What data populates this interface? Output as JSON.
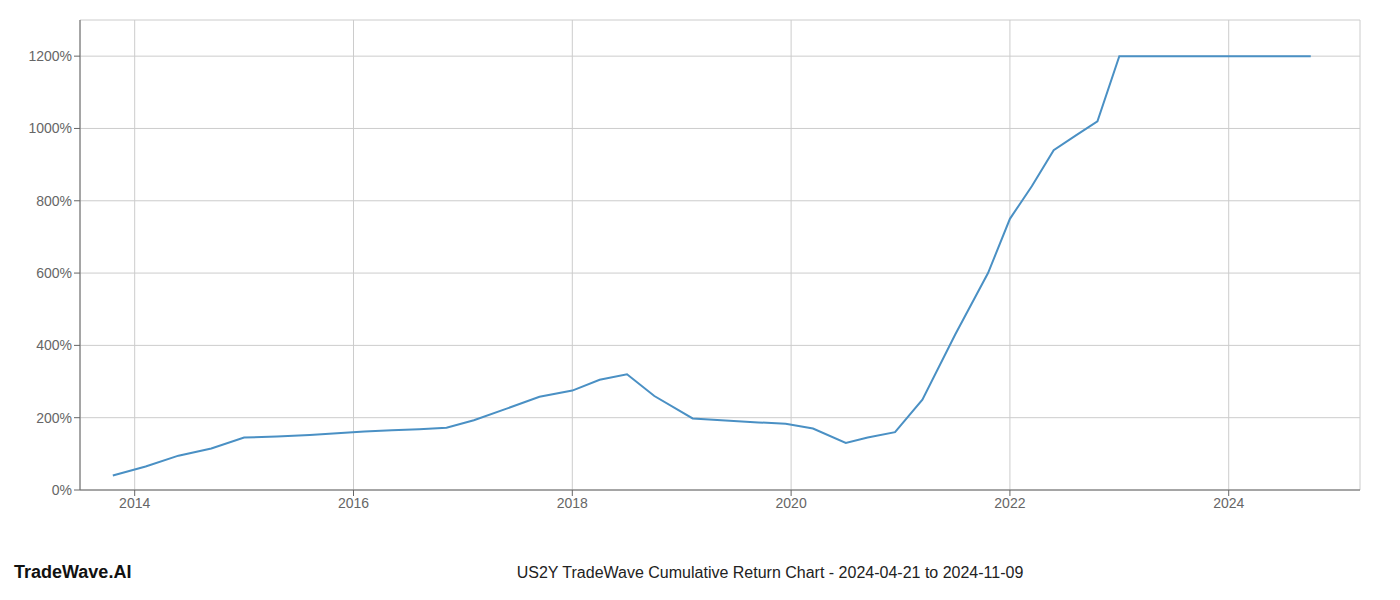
{
  "chart_data": {
    "type": "line",
    "title": "US2Y TradeWave Cumulative Return Chart - 2024-04-21 to 2024-11-09",
    "annotations": [
      "TradeWave.AI"
    ],
    "x": [
      2013.8,
      2014.1,
      2014.4,
      2014.7,
      2015.0,
      2015.3,
      2015.6,
      2015.85,
      2016.1,
      2016.35,
      2016.6,
      2016.85,
      2017.1,
      2017.4,
      2017.7,
      2018.0,
      2018.25,
      2018.5,
      2018.75,
      2019.1,
      2019.4,
      2019.7,
      2019.95,
      2020.2,
      2020.5,
      2020.7,
      2020.95,
      2021.2,
      2021.5,
      2021.8,
      2022.0,
      2022.2,
      2022.4,
      2022.6,
      2022.8,
      2023.0,
      2023.3,
      2023.6,
      2023.9,
      2024.2,
      2024.5,
      2024.75
    ],
    "values": [
      40,
      65,
      95,
      115,
      145,
      148,
      152,
      157,
      162,
      165,
      168,
      172,
      193,
      225,
      258,
      275,
      305,
      320,
      260,
      198,
      192,
      187,
      183,
      170,
      130,
      145,
      160,
      250,
      430,
      600,
      750,
      840,
      940,
      980,
      1020,
      1200,
      1200,
      1200,
      1200,
      1200,
      1200,
      1200
    ],
    "color": "#4a90c4",
    "xlim": [
      2013.5,
      2025.2
    ],
    "ylim": [
      0,
      1300
    ],
    "xticks": [
      2014,
      2016,
      2018,
      2020,
      2022,
      2024
    ],
    "yticks": [
      {
        "value": 0,
        "label": "0%"
      },
      {
        "value": 200,
        "label": "200%"
      },
      {
        "value": 400,
        "label": "400%"
      },
      {
        "value": 600,
        "label": "600%"
      },
      {
        "value": 800,
        "label": "800%"
      },
      {
        "value": 1000,
        "label": "1000%"
      },
      {
        "value": 1200,
        "label": "1200%"
      }
    ],
    "grid": true
  }
}
